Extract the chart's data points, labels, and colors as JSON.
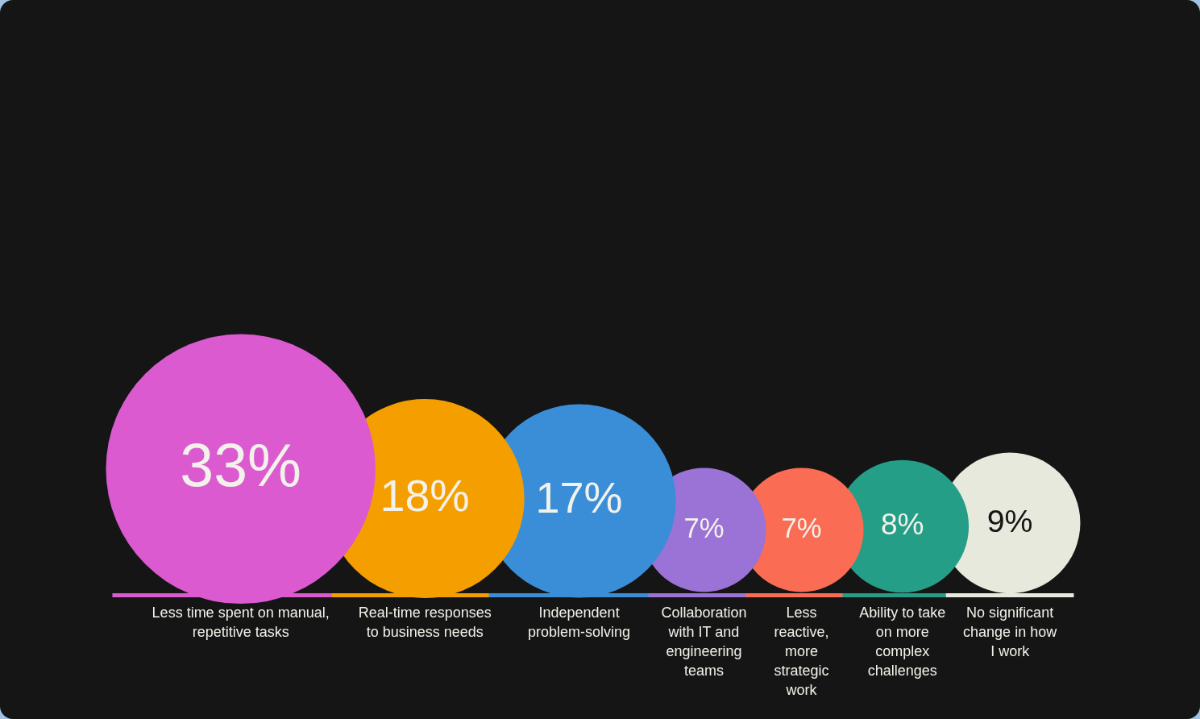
{
  "chart_data": {
    "type": "other",
    "categories": [
      "Less time spent on manual, repetitive tasks",
      "Real-time responses to business needs",
      "Independent problem-solving",
      "Collaboration with IT and engineering teams",
      "Less reactive, more strategic work",
      "Ability to take on more complex challenges",
      "No significant change in how I work"
    ],
    "values": [
      33,
      18,
      17,
      7,
      7,
      8,
      9
    ],
    "colors": [
      "#db5ad0",
      "#f59e00",
      "#3a8ed8",
      "#9b72d6",
      "#fb6c55",
      "#259e88",
      "#e6e9dc"
    ],
    "value_labels": [
      "33%",
      "18%",
      "17%",
      "7%",
      "7%",
      "8%",
      "9%"
    ]
  }
}
